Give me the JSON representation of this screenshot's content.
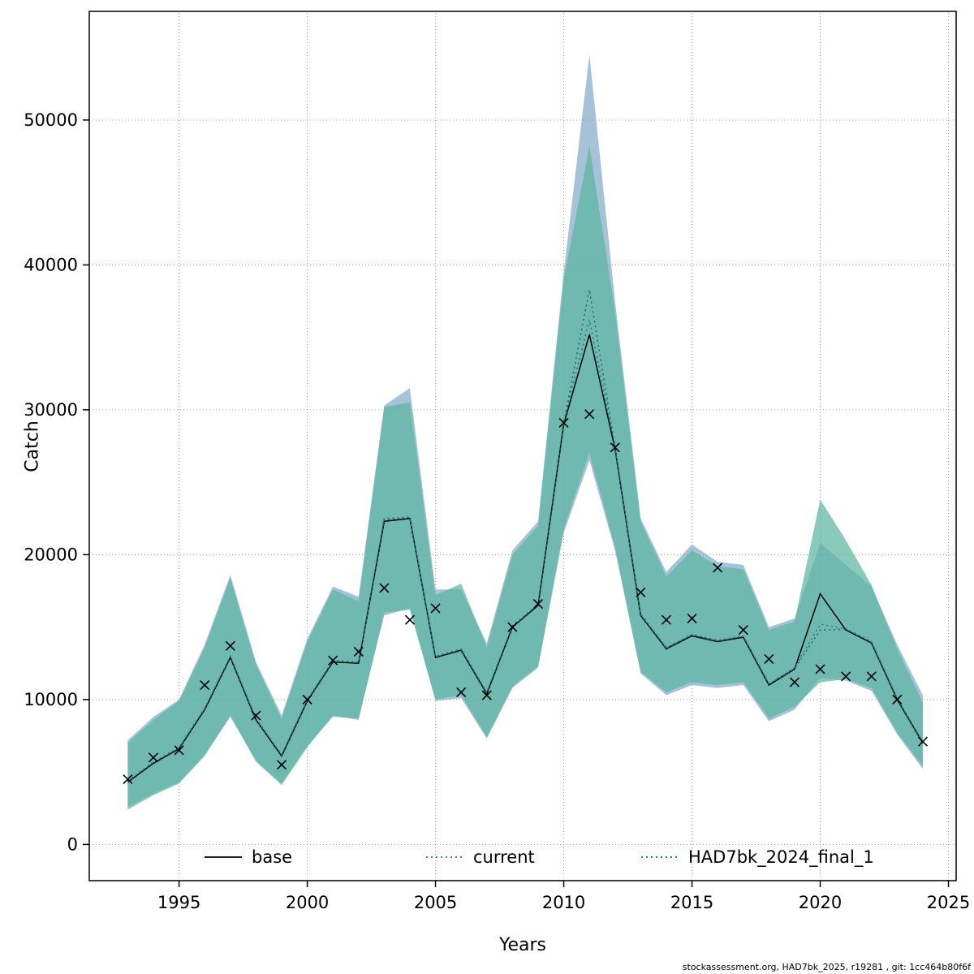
{
  "footer": {
    "text": "stockassessment.org, HAD7bk_2025, r19281 , git: 1cc464b80f6f"
  },
  "chart_data": {
    "type": "line",
    "title": "",
    "xlabel": "Years",
    "ylabel": "Catch",
    "xlim": [
      1991.5,
      2025.3
    ],
    "ylim": [
      -2500,
      57500
    ],
    "xticks": [
      1995,
      2000,
      2005,
      2010,
      2015,
      2020,
      2025
    ],
    "yticks": [
      0,
      10000,
      20000,
      30000,
      40000,
      50000
    ],
    "grid": true,
    "legend_position": "bottom-inside",
    "years": [
      1993,
      1994,
      1995,
      1996,
      1997,
      1998,
      1999,
      2000,
      2001,
      2002,
      2003,
      2004,
      2005,
      2006,
      2007,
      2008,
      2009,
      2010,
      2011,
      2012,
      2013,
      2014,
      2015,
      2016,
      2017,
      2018,
      2019,
      2020,
      2021,
      2022,
      2023,
      2024
    ],
    "observed_marker": "x",
    "observed": [
      4500,
      6000,
      6500,
      11000,
      13700,
      8900,
      5500,
      10000,
      12700,
      13300,
      17700,
      15500,
      16300,
      10500,
      10300,
      15000,
      16600,
      29100,
      29700,
      27400,
      17400,
      15500,
      15600,
      19100,
      14800,
      12800,
      11200,
      12100,
      11600,
      11600,
      10000,
      7100
    ],
    "series": [
      {
        "name": "base",
        "color": "#000000",
        "dash": "",
        "values": [
          4300,
          5600,
          6600,
          9300,
          12900,
          8600,
          6100,
          9900,
          12600,
          12500,
          22300,
          22500,
          12900,
          13400,
          10400,
          15000,
          16500,
          29000,
          35200,
          27300,
          15800,
          13500,
          14400,
          14000,
          14300,
          11000,
          12100,
          17300,
          14800,
          13900,
          10000,
          7000
        ]
      },
      {
        "name": "current",
        "color": "#2e6f9e",
        "dash": "2 4",
        "values": [
          4400,
          5700,
          6700,
          9400,
          13000,
          8700,
          6200,
          10000,
          12700,
          12600,
          22500,
          22600,
          13000,
          13500,
          10500,
          15100,
          16600,
          29200,
          36200,
          27500,
          15900,
          13600,
          14500,
          14100,
          14400,
          11100,
          12200,
          15200,
          14900,
          14000,
          10100,
          7100
        ]
      },
      {
        "name": "HAD7bk_2024_final_1",
        "color": "#0f6f68",
        "dash": "2 4",
        "values": [
          4350,
          5650,
          6650,
          9350,
          12950,
          8650,
          6150,
          9950,
          12650,
          12550,
          22400,
          22550,
          12950,
          13450,
          10450,
          15050,
          16550,
          29100,
          38300,
          27400,
          15850,
          13550,
          14450,
          14050,
          14350,
          11050,
          12150,
          14800,
          14850,
          13950,
          10050,
          7050
        ]
      }
    ],
    "bands": [
      {
        "name": "confidence-band-current",
        "color": "#6f9dc1",
        "opacity": 0.62,
        "lower": [
          2600,
          3500,
          4300,
          6200,
          8800,
          5800,
          4200,
          6800,
          8800,
          8700,
          15800,
          16300,
          9900,
          10100,
          7300,
          10800,
          12200,
          21500,
          26500,
          20300,
          11800,
          10300,
          11000,
          10800,
          11000,
          8500,
          9300,
          11500,
          11300,
          10600,
          7600,
          5200
        ],
        "upper": [
          7200,
          8800,
          10000,
          13800,
          18600,
          12600,
          8900,
          14200,
          17800,
          17100,
          30300,
          31500,
          17600,
          17600,
          13900,
          20300,
          22300,
          39500,
          54500,
          37500,
          22500,
          18800,
          20700,
          19500,
          19300,
          15000,
          15600,
          20800,
          19300,
          17800,
          13800,
          10300
        ]
      },
      {
        "name": "confidence-band-had7bk-2024-final-1",
        "color": "#5bb69f",
        "opacity": 0.72,
        "lower": [
          2400,
          3400,
          4200,
          6100,
          8900,
          5700,
          4100,
          6700,
          8900,
          8600,
          16000,
          16200,
          10000,
          10300,
          7400,
          10900,
          12300,
          21800,
          27000,
          20500,
          11900,
          10500,
          11200,
          11000,
          11200,
          8700,
          9500,
          11200,
          11400,
          10800,
          7700,
          5400
        ],
        "upper": [
          7000,
          8600,
          9900,
          13600,
          18400,
          12400,
          8700,
          14000,
          17600,
          16800,
          30200,
          30500,
          17200,
          18000,
          13600,
          20000,
          22000,
          39000,
          48200,
          36800,
          22300,
          18500,
          20300,
          19200,
          19000,
          14800,
          15400,
          23800,
          21000,
          17900,
          13500,
          9800
        ]
      }
    ]
  }
}
